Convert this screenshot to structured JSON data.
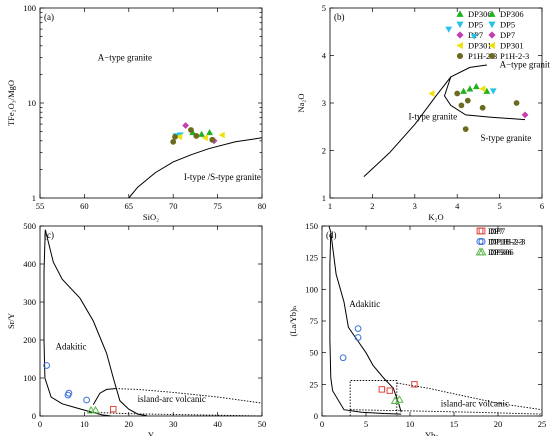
{
  "chart_data": [
    {
      "type": "scatter",
      "panel_label": "(a)",
      "xlabel": "SiO₂",
      "ylabel": "TFe₂O₃/MgO",
      "xlim": [
        55,
        80
      ],
      "ylim": [
        1,
        100
      ],
      "yscale": "log",
      "xticks": [
        55,
        60,
        65,
        70,
        75,
        80
      ],
      "yticks": [
        1,
        10,
        100
      ],
      "regions": [
        "A−type granite",
        "I-type /S-type granite"
      ],
      "legend": {
        "placement": "top-right"
      },
      "series": [
        {
          "name": "DP306",
          "marker": "triangle-up",
          "color": "#22b022",
          "points": [
            [
              72.2,
              4.9
            ],
            [
              73.2,
              4.7
            ],
            [
              74.1,
              4.9
            ]
          ]
        },
        {
          "name": "DP5",
          "marker": "triangle-down",
          "color": "#27c3e6",
          "points": [
            [
              70.3,
              4.5
            ],
            [
              70.8,
              4.6
            ]
          ]
        },
        {
          "name": "DP7",
          "marker": "diamond",
          "color": "#c43fb0",
          "points": [
            [
              71.4,
              5.8
            ],
            [
              74.6,
              4.0
            ]
          ]
        },
        {
          "name": "DP301",
          "marker": "triangle-left",
          "color": "#f0e010",
          "points": [
            [
              70.7,
              4.4
            ],
            [
              73.6,
              4.3
            ],
            [
              75.5,
              4.6
            ]
          ]
        },
        {
          "name": "P1H-2-3",
          "marker": "circle",
          "color": "#6b6b1f",
          "points": [
            [
              70.0,
              3.9
            ],
            [
              70.2,
              4.4
            ],
            [
              72.0,
              5.2
            ],
            [
              72.6,
              4.5
            ],
            [
              74.4,
              4.1
            ]
          ]
        }
      ]
    },
    {
      "type": "scatter",
      "panel_label": "(b)",
      "xlabel": "K₂O",
      "ylabel": "Na₂O",
      "xlim": [
        1,
        6
      ],
      "ylim": [
        1,
        5
      ],
      "xticks": [
        1,
        2,
        3,
        4,
        5,
        6
      ],
      "yticks": [
        1,
        2,
        3,
        4,
        5
      ],
      "regions": [
        "A−type granite",
        "I-type granite",
        "S-type granite"
      ],
      "legend": {
        "placement": "top-right"
      },
      "series": [
        {
          "name": "DP306",
          "marker": "triangle-up",
          "color": "#22b022",
          "points": [
            [
              4.15,
              3.25
            ],
            [
              4.3,
              3.3
            ],
            [
              4.45,
              3.35
            ],
            [
              4.7,
              3.25
            ]
          ]
        },
        {
          "name": "DP5",
          "marker": "triangle-down",
          "color": "#27c3e6",
          "points": [
            [
              3.8,
              4.55
            ],
            [
              4.4,
              4.4
            ],
            [
              4.85,
              3.25
            ]
          ]
        },
        {
          "name": "DP7",
          "marker": "diamond",
          "color": "#c43fb0",
          "points": [
            [
              5.6,
              2.75
            ]
          ]
        },
        {
          "name": "DP301",
          "marker": "triangle-left",
          "color": "#f0e010",
          "points": [
            [
              3.4,
              3.2
            ],
            [
              4.6,
              3.3
            ]
          ]
        },
        {
          "name": "P1H-2-3",
          "marker": "circle",
          "color": "#6b6b1f",
          "points": [
            [
              4.0,
              3.2
            ],
            [
              4.25,
              3.05
            ],
            [
              4.1,
              2.95
            ],
            [
              4.6,
              2.9
            ],
            [
              5.4,
              3.0
            ],
            [
              4.2,
              2.45
            ]
          ]
        }
      ]
    },
    {
      "type": "scatter",
      "panel_label": "(c)",
      "xlabel": "Y",
      "ylabel": "Sr/Y",
      "xlim": [
        0,
        50
      ],
      "ylim": [
        0,
        500
      ],
      "xticks": [
        0,
        10,
        20,
        30,
        40,
        50
      ],
      "yticks": [
        0,
        100,
        200,
        300,
        400,
        500
      ],
      "regions": [
        "Adakitic",
        "island-arc volcanic"
      ],
      "legend": {
        "placement": "top-right"
      },
      "series": [
        {
          "name": "DP7",
          "marker": "square",
          "color": "#e0433a",
          "points": [
            [
              16.5,
              18
            ]
          ]
        },
        {
          "name": "DP1H-2-3",
          "marker": "circle",
          "color": "#3a6fd8",
          "points": [
            [
              1.5,
              133
            ],
            [
              6.3,
              55
            ],
            [
              6.5,
              60
            ],
            [
              10.5,
              42
            ]
          ]
        },
        {
          "name": "DP306",
          "marker": "triangle-up",
          "color": "#5ab84a",
          "points": [
            [
              11.5,
              15
            ],
            [
              12.5,
              15
            ]
          ]
        }
      ]
    },
    {
      "type": "scatter",
      "panel_label": "(d)",
      "xlabel": "Ybₙ",
      "ylabel": "(La/Yb)ₙ",
      "xlim": [
        0,
        25
      ],
      "ylim": [
        0,
        150
      ],
      "xticks": [
        0,
        5,
        10,
        15,
        20,
        25
      ],
      "yticks": [
        0,
        25,
        50,
        75,
        100,
        125,
        150
      ],
      "regions": [
        "Adakitic",
        "island-arc volcanic"
      ],
      "legend": {
        "placement": "top-right"
      },
      "series": [
        {
          "name": "DP7",
          "marker": "square",
          "color": "#e0433a",
          "points": [
            [
              6.8,
              21
            ],
            [
              7.7,
              20
            ],
            [
              10.5,
              25
            ]
          ]
        },
        {
          "name": "DP1H-2-3",
          "marker": "circle",
          "color": "#3a6fd8",
          "points": [
            [
              2.4,
              46
            ],
            [
              4.1,
              69
            ],
            [
              4.1,
              62
            ]
          ]
        },
        {
          "name": "DP306",
          "marker": "triangle-up",
          "color": "#5ab84a",
          "points": [
            [
              8.3,
              12
            ],
            [
              8.8,
              13
            ]
          ]
        }
      ]
    }
  ]
}
